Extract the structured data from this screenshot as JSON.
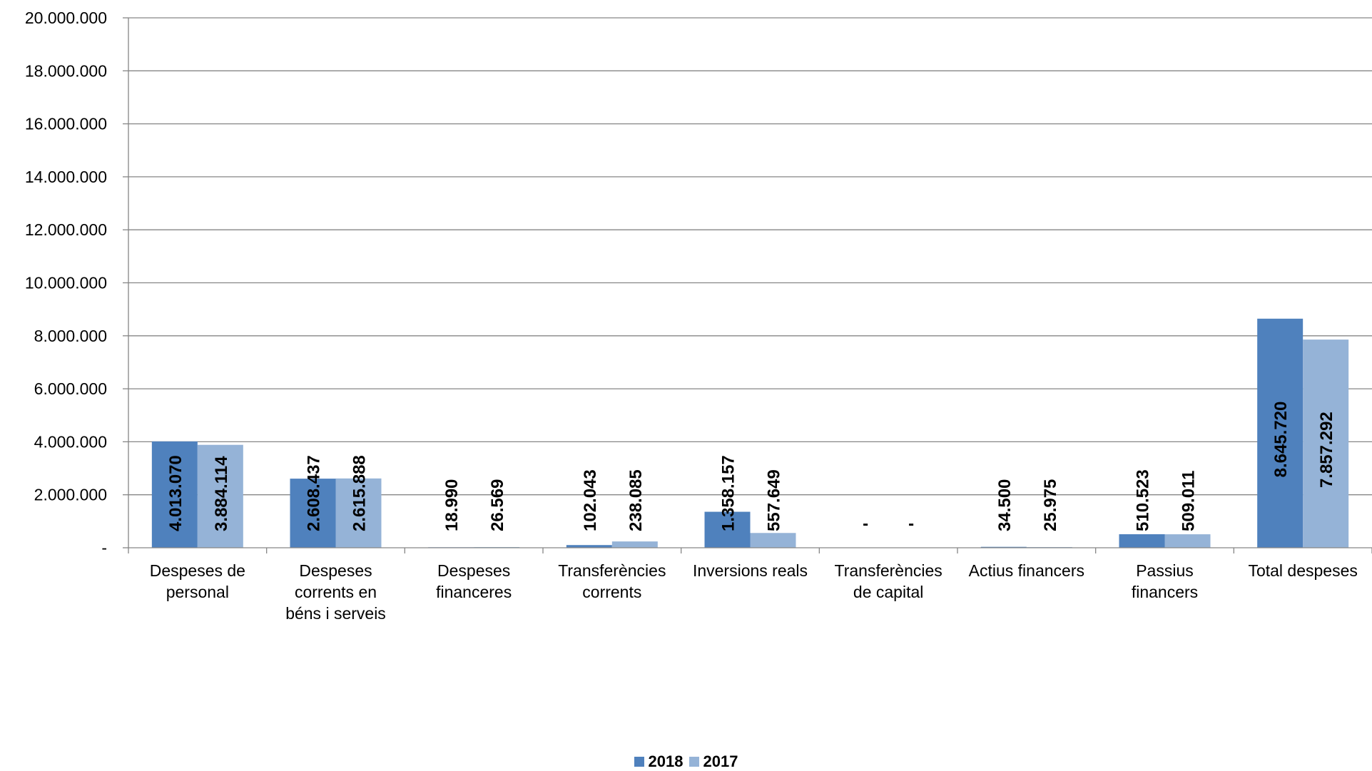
{
  "chart_data": {
    "type": "bar",
    "categories": [
      [
        "Despeses de",
        "personal"
      ],
      [
        "Despeses",
        "corrents en",
        "béns i serveis"
      ],
      [
        "Despeses",
        "financeres"
      ],
      [
        "Transferències",
        "corrents"
      ],
      [
        "Inversions reals"
      ],
      [
        "Transferències",
        "de capital"
      ],
      [
        "Actius financers"
      ],
      [
        "Passius",
        "financers"
      ],
      [
        "Total despeses"
      ]
    ],
    "series": [
      {
        "name": "2018",
        "color": "#4f81bd",
        "values": [
          4013070,
          2608437,
          18990,
          102043,
          1358157,
          0,
          34500,
          510523,
          8645720
        ],
        "labels": [
          "4.013.070",
          "2.608.437",
          "18.990",
          "102.043",
          "1.358.157",
          "-",
          "34.500",
          "510.523",
          "8.645.720"
        ]
      },
      {
        "name": "2017",
        "color": "#95b3d7",
        "values": [
          3884114,
          2615888,
          26569,
          238085,
          557649,
          0,
          25975,
          509011,
          7857292
        ],
        "labels": [
          "3.884.114",
          "2.615.888",
          "26.569",
          "238.085",
          "557.649",
          "-",
          "25.975",
          "509.011",
          "7.857.292"
        ]
      }
    ],
    "ylim": [
      0,
      20000000
    ],
    "yticks": [
      {
        "value": 0,
        "label": "-"
      },
      {
        "value": 2000000,
        "label": "2.000.000"
      },
      {
        "value": 4000000,
        "label": "4.000.000"
      },
      {
        "value": 6000000,
        "label": "6.000.000"
      },
      {
        "value": 8000000,
        "label": "8.000.000"
      },
      {
        "value": 10000000,
        "label": "10.000.000"
      },
      {
        "value": 12000000,
        "label": "12.000.000"
      },
      {
        "value": 14000000,
        "label": "14.000.000"
      },
      {
        "value": 16000000,
        "label": "16.000.000"
      },
      {
        "value": 18000000,
        "label": "18.000.000"
      },
      {
        "value": 20000000,
        "label": "20.000.000"
      }
    ],
    "grid": true,
    "legend_position": "bottom"
  }
}
